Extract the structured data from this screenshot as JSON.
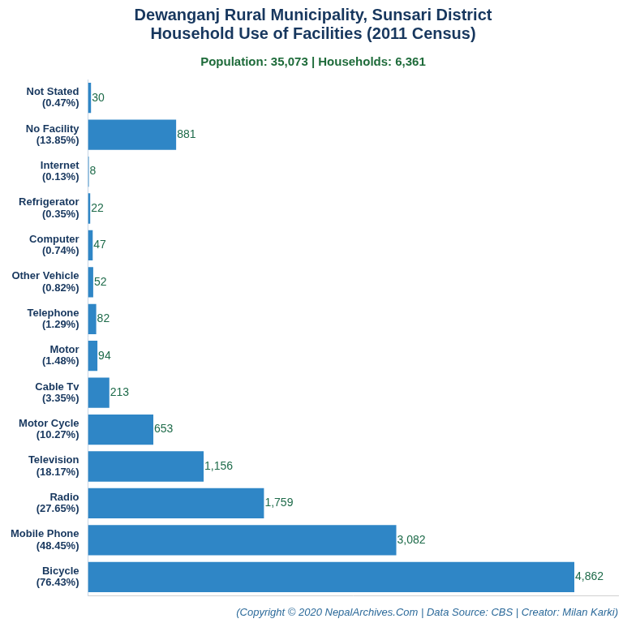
{
  "chart_data": {
    "type": "bar",
    "orientation": "horizontal",
    "title": [
      "Dewanganj Rural Municipality, Sunsari District",
      "Household Use of Facilities (2011 Census)"
    ],
    "subtitle": "Population: 35,073 | Households: 6,361",
    "caption": "(Copyright © 2020 NepalArchives.Com | Data Source: CBS | Creator: Milan Karki)",
    "categories": [
      "Not Stated\n(0.47%)",
      "No Facility\n(13.85%)",
      "Internet\n(0.13%)",
      "Refrigerator\n(0.35%)",
      "Computer\n(0.74%)",
      "Other Vehicle\n(0.82%)",
      "Telephone\n(1.29%)",
      "Motor\n(1.48%)",
      "Cable Tv\n(3.35%)",
      "Motor Cycle\n(10.27%)",
      "Television\n(18.17%)",
      "Radio\n(27.65%)",
      "Mobile Phone\n(48.45%)",
      "Bicycle\n(76.43%)"
    ],
    "values": [
      30,
      881,
      8,
      22,
      47,
      52,
      82,
      94,
      213,
      653,
      1156,
      1759,
      3082,
      4862
    ],
    "value_labels": [
      "30",
      "881",
      "8",
      "22",
      "47",
      "52",
      "82",
      "94",
      "213",
      "653",
      "1,156",
      "1,759",
      "3,082",
      "4,862"
    ],
    "color": "#2f86c6",
    "xlim": [
      0,
      5300
    ],
    "data_labels": true,
    "tick_labels": "y",
    "grid": false
  }
}
